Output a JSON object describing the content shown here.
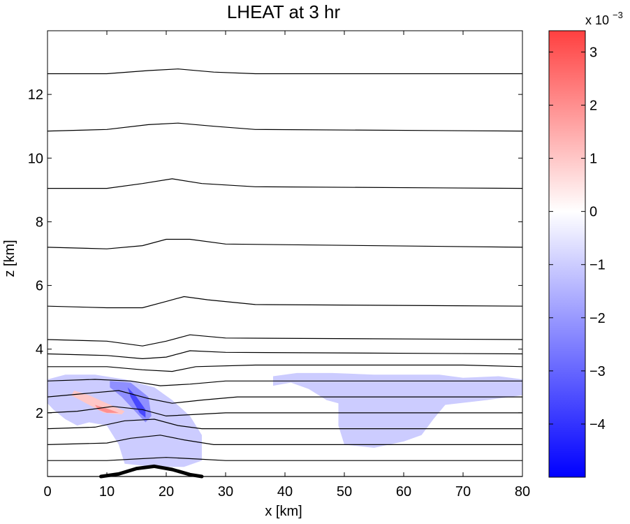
{
  "chart_data": {
    "type": "contour",
    "title": "LHEAT at 3 hr",
    "xlabel": "x [km]",
    "ylabel": "z [km]",
    "xlim": [
      0,
      80
    ],
    "ylim": [
      0,
      14
    ],
    "xticks": [
      0,
      10,
      20,
      30,
      40,
      50,
      60,
      70,
      80
    ],
    "yticks": [
      2,
      4,
      6,
      8,
      10,
      12
    ],
    "colorbar": {
      "multiplier_base": "x 10",
      "multiplier_exponent": "−3",
      "range": [
        -5,
        3.4
      ],
      "ticks": [
        "3",
        "2",
        "1",
        "0",
        "−1",
        "−2",
        "−3",
        "−4"
      ],
      "tick_values": [
        3,
        2,
        1,
        0,
        -1,
        -2,
        -3,
        -4
      ],
      "colormap": {
        "min_color": "#0000ff",
        "mid_color": "#ffffff",
        "max_color": "#ff4040"
      }
    },
    "isentropes": [
      {
        "base_z": 0.0,
        "points": [
          [
            0,
            0.0
          ],
          [
            80,
            0.0
          ]
        ]
      },
      {
        "base_z": 0.5,
        "points": [
          [
            0,
            0.5
          ],
          [
            10,
            0.5
          ],
          [
            15,
            0.55
          ],
          [
            20,
            0.6
          ],
          [
            25,
            0.55
          ],
          [
            30,
            0.5
          ],
          [
            80,
            0.5
          ]
        ]
      },
      {
        "base_z": 1.0,
        "points": [
          [
            0,
            1.0
          ],
          [
            10,
            1.05
          ],
          [
            14,
            1.2
          ],
          [
            19,
            1.3
          ],
          [
            23,
            1.15
          ],
          [
            28,
            1.0
          ],
          [
            80,
            1.0
          ]
        ]
      },
      {
        "base_z": 1.5,
        "points": [
          [
            0,
            1.5
          ],
          [
            8,
            1.55
          ],
          [
            13,
            1.75
          ],
          [
            18,
            1.8
          ],
          [
            22,
            1.6
          ],
          [
            26,
            1.5
          ],
          [
            80,
            1.5
          ]
        ]
      },
      {
        "base_z": 2.0,
        "points": [
          [
            0,
            2.0
          ],
          [
            5,
            2.05
          ],
          [
            11,
            2.2
          ],
          [
            16,
            2.1
          ],
          [
            20,
            1.9
          ],
          [
            25,
            1.95
          ],
          [
            30,
            2.0
          ],
          [
            80,
            2.0
          ]
        ]
      },
      {
        "base_z": 2.5,
        "points": [
          [
            0,
            2.5
          ],
          [
            6,
            2.6
          ],
          [
            12,
            2.7
          ],
          [
            17,
            2.45
          ],
          [
            21,
            2.3
          ],
          [
            26,
            2.4
          ],
          [
            32,
            2.5
          ],
          [
            80,
            2.5
          ]
        ]
      },
      {
        "base_z": 3.0,
        "points": [
          [
            0,
            3.0
          ],
          [
            8,
            3.05
          ],
          [
            14,
            3.0
          ],
          [
            19,
            2.85
          ],
          [
            24,
            2.9
          ],
          [
            30,
            3.0
          ],
          [
            80,
            3.0
          ]
        ]
      },
      {
        "base_z": 3.45,
        "points": [
          [
            0,
            3.45
          ],
          [
            10,
            3.45
          ],
          [
            16,
            3.35
          ],
          [
            21,
            3.3
          ],
          [
            25,
            3.45
          ],
          [
            35,
            3.5
          ],
          [
            70,
            3.5
          ],
          [
            80,
            3.45
          ]
        ]
      },
      {
        "base_z": 3.85,
        "points": [
          [
            0,
            3.85
          ],
          [
            10,
            3.8
          ],
          [
            16,
            3.7
          ],
          [
            20,
            3.75
          ],
          [
            24,
            3.95
          ],
          [
            30,
            3.9
          ],
          [
            80,
            3.85
          ]
        ]
      },
      {
        "base_z": 4.3,
        "points": [
          [
            0,
            4.3
          ],
          [
            10,
            4.25
          ],
          [
            16,
            4.1
          ],
          [
            20,
            4.25
          ],
          [
            24,
            4.45
          ],
          [
            30,
            4.35
          ],
          [
            80,
            4.3
          ]
        ]
      },
      {
        "base_z": 5.35,
        "points": [
          [
            0,
            5.35
          ],
          [
            10,
            5.3
          ],
          [
            16,
            5.3
          ],
          [
            20,
            5.5
          ],
          [
            23,
            5.65
          ],
          [
            27,
            5.55
          ],
          [
            35,
            5.4
          ],
          [
            80,
            5.35
          ]
        ]
      },
      {
        "base_z": 7.2,
        "points": [
          [
            0,
            7.2
          ],
          [
            10,
            7.15
          ],
          [
            16,
            7.25
          ],
          [
            20,
            7.45
          ],
          [
            24,
            7.45
          ],
          [
            30,
            7.3
          ],
          [
            80,
            7.2
          ]
        ]
      },
      {
        "base_z": 9.05,
        "points": [
          [
            0,
            9.05
          ],
          [
            10,
            9.05
          ],
          [
            16,
            9.2
          ],
          [
            21,
            9.35
          ],
          [
            26,
            9.2
          ],
          [
            35,
            9.1
          ],
          [
            80,
            9.05
          ]
        ]
      },
      {
        "base_z": 10.85,
        "points": [
          [
            0,
            10.85
          ],
          [
            10,
            10.9
          ],
          [
            17,
            11.05
          ],
          [
            22,
            11.1
          ],
          [
            28,
            11.0
          ],
          [
            35,
            10.9
          ],
          [
            80,
            10.85
          ]
        ]
      },
      {
        "base_z": 12.65,
        "points": [
          [
            0,
            12.65
          ],
          [
            10,
            12.65
          ],
          [
            17,
            12.75
          ],
          [
            22,
            12.8
          ],
          [
            28,
            12.7
          ],
          [
            35,
            12.65
          ],
          [
            80,
            12.65
          ]
        ]
      }
    ],
    "terrain": {
      "points": [
        [
          9,
          0.0
        ],
        [
          12,
          0.08
        ],
        [
          15,
          0.25
        ],
        [
          18,
          0.32
        ],
        [
          21,
          0.22
        ],
        [
          24,
          0.06
        ],
        [
          26,
          0.0
        ]
      ]
    },
    "filled_regions": [
      {
        "value": -1.0,
        "points": [
          [
            0,
            3.05
          ],
          [
            3,
            3.2
          ],
          [
            8,
            3.2
          ],
          [
            13,
            3.05
          ],
          [
            18,
            2.8
          ],
          [
            21,
            2.4
          ],
          [
            24,
            1.9
          ],
          [
            26,
            1.3
          ],
          [
            26,
            0.5
          ],
          [
            23,
            0.3
          ],
          [
            18,
            0.3
          ],
          [
            13,
            0.4
          ],
          [
            12,
            1.0
          ],
          [
            10,
            1.6
          ],
          [
            7,
            1.7
          ],
          [
            5,
            1.6
          ],
          [
            3,
            1.8
          ],
          [
            1,
            2.1
          ],
          [
            0,
            2.3
          ]
        ]
      },
      {
        "value": -1.0,
        "points": [
          [
            38,
            3.15
          ],
          [
            42,
            3.25
          ],
          [
            48,
            3.25
          ],
          [
            55,
            3.2
          ],
          [
            66,
            3.2
          ],
          [
            70,
            3.1
          ],
          [
            76,
            3.15
          ],
          [
            80,
            3.05
          ],
          [
            80,
            2.55
          ],
          [
            74,
            2.4
          ],
          [
            67,
            2.25
          ],
          [
            65,
            1.8
          ],
          [
            63,
            1.3
          ],
          [
            60,
            1.1
          ],
          [
            55,
            0.9
          ],
          [
            50,
            1.0
          ],
          [
            49,
            1.6
          ],
          [
            49,
            2.3
          ],
          [
            47,
            2.4
          ],
          [
            44,
            2.75
          ],
          [
            41,
            2.95
          ],
          [
            38,
            2.85
          ]
        ]
      },
      {
        "value": -2.2,
        "points": [
          [
            10.5,
            3.0
          ],
          [
            14,
            2.95
          ],
          [
            17,
            2.5
          ],
          [
            17.5,
            1.9
          ],
          [
            16.5,
            1.7
          ],
          [
            15,
            2.0
          ],
          [
            12.5,
            2.5
          ],
          [
            10.5,
            2.8
          ]
        ]
      },
      {
        "value": -3.6,
        "points": [
          [
            13.5,
            2.8
          ],
          [
            15,
            2.5
          ],
          [
            16.5,
            2.1
          ],
          [
            16.5,
            1.85
          ],
          [
            15.5,
            2.0
          ],
          [
            14,
            2.5
          ]
        ]
      },
      {
        "value": 1.0,
        "points": [
          [
            4.5,
            2.7
          ],
          [
            7,
            2.55
          ],
          [
            10,
            2.3
          ],
          [
            13,
            2.05
          ],
          [
            12.5,
            1.95
          ],
          [
            9.5,
            2.0
          ],
          [
            6.5,
            2.3
          ],
          [
            4,
            2.55
          ]
        ]
      },
      {
        "value": 2.0,
        "points": [
          [
            8,
            2.25
          ],
          [
            10.5,
            2.1
          ],
          [
            12,
            2.0
          ],
          [
            10,
            2.0
          ],
          [
            8.5,
            2.1
          ]
        ]
      }
    ]
  }
}
